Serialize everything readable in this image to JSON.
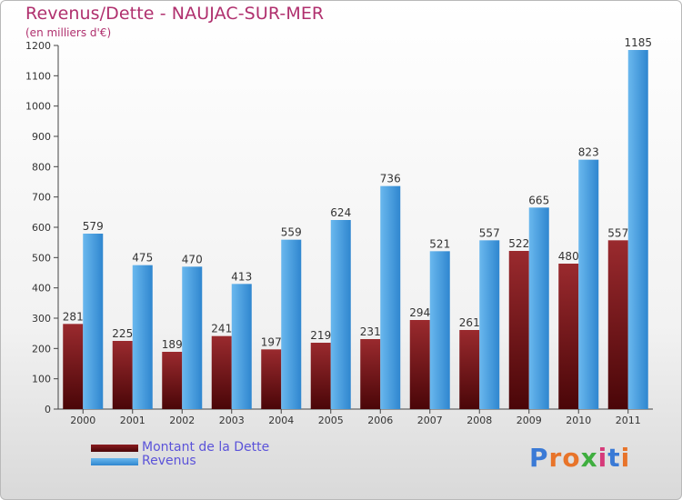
{
  "title": "Revenus/Dette - NAUJAC-SUR-MER",
  "subtitle": "(en milliers d'€)",
  "logo": {
    "text": "Proxiti",
    "letters": [
      "P",
      "r",
      "o",
      "x",
      "i",
      "t",
      "i"
    ],
    "colors": [
      "#3a7ad6",
      "#e8742a",
      "#e8742a",
      "#3fae3f",
      "#d63a7a",
      "#3a7ad6",
      "#e8742a"
    ]
  },
  "legend": [
    {
      "label": "Montant de la Dette",
      "color": "#6b0f12"
    },
    {
      "label": "Revenus",
      "color": "#3d9ae0"
    }
  ],
  "chart_data": {
    "type": "bar",
    "categories": [
      "2000",
      "2001",
      "2002",
      "2003",
      "2004",
      "2005",
      "2006",
      "2007",
      "2008",
      "2009",
      "2010",
      "2011"
    ],
    "series": [
      {
        "name": "Montant de la Dette",
        "values": [
          281,
          225,
          189,
          241,
          197,
          219,
          231,
          294,
          261,
          522,
          480,
          557
        ],
        "color": "#8a1a1e"
      },
      {
        "name": "Revenus",
        "values": [
          579,
          475,
          470,
          413,
          559,
          624,
          736,
          521,
          557,
          665,
          823,
          1185
        ],
        "color": "#3d9ae0"
      }
    ],
    "ylim": [
      0,
      1200
    ],
    "yticks": [
      0,
      100,
      200,
      300,
      400,
      500,
      600,
      700,
      800,
      900,
      1000,
      1100,
      1200
    ],
    "grid": false,
    "legend_position": "bottom-left"
  }
}
